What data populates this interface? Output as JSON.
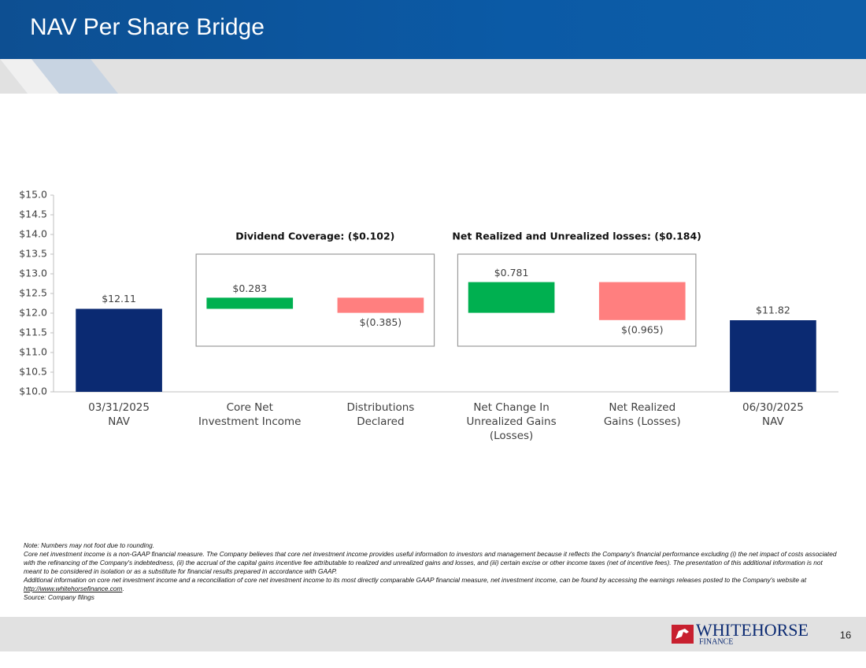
{
  "header": {
    "title": "NAV Per Share Bridge"
  },
  "chart_data": {
    "type": "waterfall",
    "categories": [
      [
        "03/31/2025",
        "NAV"
      ],
      [
        "Core Net",
        "Investment Income"
      ],
      [
        "Distributions",
        "Declared"
      ],
      [
        "Net Change In",
        "Unrealized Gains",
        "(Losses)"
      ],
      [
        "Net Realized",
        "Gains (Losses)"
      ],
      [
        "06/30/2025",
        "NAV"
      ]
    ],
    "values": [
      12.11,
      0.283,
      -0.385,
      0.781,
      -0.965,
      11.82
    ],
    "value_labels": [
      "$12.11",
      "$0.283",
      "$(0.385)",
      "$0.781",
      "$(0.965)",
      "$11.82"
    ],
    "measure": [
      "total",
      "relative",
      "relative",
      "relative",
      "relative",
      "total"
    ],
    "colors": {
      "total": "#0b2a72",
      "increase": "#00b050",
      "decrease": "#ff7f7f"
    },
    "annotations": [
      "Dividend Coverage: ($0.102)",
      "Net Realized and Unrealized losses: ($0.184)"
    ],
    "ylim": [
      10,
      15
    ],
    "yticks": [
      {
        "value": 10,
        "label": "$10.0"
      },
      {
        "value": 10.5,
        "label": "$10.5"
      },
      {
        "value": 11,
        "label": "$11.0"
      },
      {
        "value": 11.5,
        "label": "$11.5"
      },
      {
        "value": 12,
        "label": "$12.0"
      },
      {
        "value": 12.5,
        "label": "$12.5"
      },
      {
        "value": 13,
        "label": "$13.0"
      },
      {
        "value": 13.5,
        "label": "$13.5"
      },
      {
        "value": 14,
        "label": "$14.0"
      },
      {
        "value": 14.5,
        "label": "$14.5"
      },
      {
        "value": 15,
        "label": "$15.0"
      }
    ],
    "grid": false
  },
  "notes": {
    "rounding": "Note: Numbers may not foot due to rounding.",
    "core": "Core net investment income is a non-GAAP financial measure. The Company believes that core net investment income provides useful information to investors and management because it reflects the Company's financial performance excluding (i) the net impact of costs associated with the refinancing of the Company's indebtedness, (ii) the accrual of the capital gains incentive fee attributable to realized and unrealized gains and losses, and (iii) certain excise or other income taxes (net of incentive fees). The presentation of this additional information is not meant to be considered in isolation or as a substitute for financial results prepared in accordance with GAAP.",
    "additional": "Additional information on core net investment income and a reconciliation of core net investment income to its most directly comparable GAAP financial measure, net investment income, can be found by accessing the earnings releases posted to the Company's website at ",
    "link": "http://www.whitehorsefinance.com",
    "end": ".",
    "source": "Source: Company filings"
  },
  "footer": {
    "logo_top": "WHITEHORSE",
    "logo_bottom": "FINANCE",
    "page": "16"
  }
}
